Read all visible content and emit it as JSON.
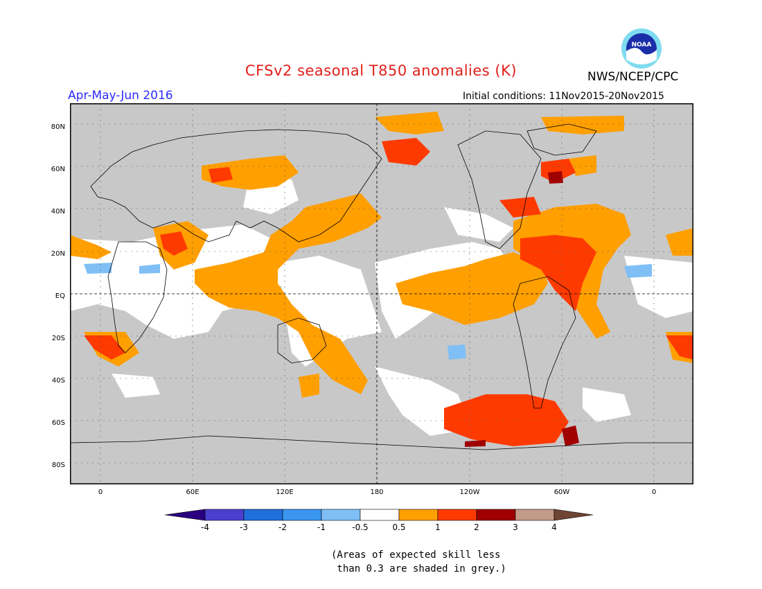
{
  "title": "CFSv2 seasonal T850 anomalies (K)",
  "season": "Apr-May-Jun 2016",
  "agency": "NWS/NCEP/CPC",
  "logo_text": "NOAA",
  "initial_conditions": "Initial conditions: 11Nov2015-20Nov2015",
  "colors": {
    "title": "#e0201a",
    "season": "#2a2aff",
    "grey_skill": "#c8c8c8",
    "ocean_white": "#ffffff",
    "coast": "#000000"
  },
  "lat_labels": [
    "80N",
    "60N",
    "40N",
    "20N",
    "EQ",
    "20S",
    "40S",
    "60S",
    "80S"
  ],
  "lon_labels": [
    "0",
    "60E",
    "120E",
    "180",
    "120W",
    "60W",
    "0"
  ],
  "legend": {
    "bins": [
      {
        "color": "#2a0080"
      },
      {
        "color": "#4b3fcf"
      },
      {
        "color": "#1f6fdc"
      },
      {
        "color": "#3a96f0"
      },
      {
        "color": "#7fbff5"
      },
      {
        "color": "#ffffff"
      },
      {
        "color": "#ff9f00"
      },
      {
        "color": "#ff3a00"
      },
      {
        "color": "#a00000"
      },
      {
        "color": "#c49a88"
      },
      {
        "color": "#6e4434"
      }
    ],
    "tick_labels": [
      "-4",
      "-3",
      "-2",
      "-1",
      "-0.5",
      "0.5",
      "1",
      "2",
      "3",
      "4"
    ]
  },
  "note_line1": "(Areas of expected skill less",
  "note_line2": " than 0.3 are shaded in grey.)"
}
